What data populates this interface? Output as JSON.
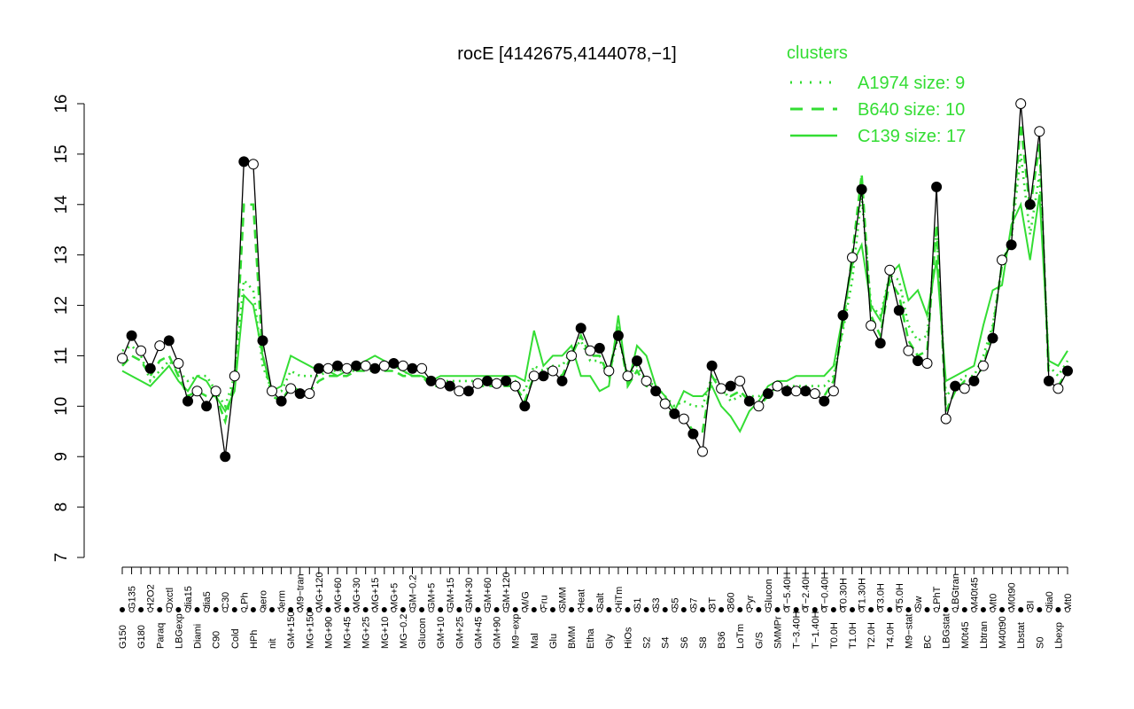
{
  "chart_data": {
    "type": "line",
    "title": "rocE [4142675,4144078,−1]",
    "xlabel": "",
    "ylabel": "",
    "ylim": [
      7,
      16
    ],
    "y_ticks": [
      7,
      8,
      9,
      10,
      11,
      12,
      13,
      14,
      15,
      16
    ],
    "grid": false,
    "legend": {
      "title": "clusters",
      "position": "top-right",
      "entries": [
        {
          "label": "A1974 size: 9",
          "style": "dotted"
        },
        {
          "label": "B640 size: 10",
          "style": "dashed"
        },
        {
          "label": "C139 size: 17",
          "style": "solid"
        }
      ]
    },
    "colors": {
      "cluster_lines": "#33dd33",
      "profile": "#000000",
      "point_fill": "#ffffff"
    },
    "x_tick_labels": [
      "G150",
      "G135",
      "G180",
      "H2O2",
      "Paraq",
      "Oxctl",
      "LBGexp",
      "dia15",
      "Diami",
      "dia5",
      "C90",
      "C30",
      "Cold",
      "LPh",
      "HPh",
      "aero",
      "nit",
      "ferm",
      "GM+150",
      "M9−tran",
      "MG+150",
      "MG+120",
      "MG+90",
      "MG+60",
      "MG+45",
      "MG+30",
      "MG+25",
      "MG+15",
      "MG+10",
      "MG+5",
      "MG−0.2",
      "GM−0.2",
      "Glucon",
      "GM+5",
      "GM+10",
      "GM+15",
      "GM+25",
      "GM+30",
      "GM+45",
      "GM+60",
      "GM+90",
      "GM+120",
      "M9−exp",
      "M/G",
      "Mal",
      "Fru",
      "Glu",
      "SMM",
      "BMM",
      "Heat",
      "Etha",
      "Salt",
      "Gly",
      "HiTm",
      "HiOs",
      "S1",
      "S2",
      "S3",
      "S4",
      "S5",
      "S6",
      "S7",
      "S8",
      "BT",
      "B36",
      "B60",
      "LoTm",
      "Pyr",
      "G/S",
      "Glucon",
      "SMMPr",
      "T−5.40H",
      "T−3.40H",
      "T−2.40H",
      "T−1.40H",
      "T−0.40H",
      "T0.0H",
      "T0.30H",
      "T1.0H",
      "T1.30H",
      "T2.0H",
      "T3.0H",
      "T4.0H",
      "T5.0H",
      "M9−stat",
      "Sw",
      "BC",
      "LPhT",
      "LBGstat",
      "LBGtran",
      "M0t45",
      "M40t45",
      "Lbtran",
      "Mt0",
      "M40t90",
      "M0t90",
      "Lbstat",
      "BI",
      "S0",
      "dia0",
      "Lbexp",
      "Mt0"
    ],
    "x": [
      1,
      2,
      3,
      4,
      5,
      6,
      7,
      8,
      9,
      10,
      11,
      12,
      13,
      14,
      15,
      16,
      17,
      18,
      19,
      20,
      21,
      22,
      23,
      24,
      25,
      26,
      27,
      28,
      29,
      30,
      31,
      32,
      33,
      34,
      35,
      36,
      37,
      38,
      39,
      40,
      41,
      42,
      43,
      44,
      45,
      46,
      47,
      48,
      49,
      50,
      51,
      52,
      53,
      54,
      55,
      56,
      57,
      58,
      59,
      60,
      61,
      62,
      63,
      64,
      65,
      66,
      67,
      68,
      69,
      70,
      71,
      72,
      73,
      74,
      75,
      76,
      77,
      78,
      79,
      80,
      81,
      82,
      83,
      84,
      85,
      86,
      87,
      88,
      89,
      90,
      91,
      92,
      93,
      94,
      95,
      96,
      97,
      98,
      99,
      100,
      101,
      102
    ],
    "series": [
      {
        "values": [
          10.95,
          11.4,
          11.1,
          10.75,
          11.2,
          11.3,
          10.85,
          10.1,
          10.3,
          10.0,
          10.3,
          9.0,
          10.6,
          14.85,
          14.8,
          11.3,
          10.3,
          10.1,
          10.35,
          10.25,
          10.25,
          10.75,
          10.75,
          10.8,
          10.75,
          10.8,
          10.8,
          10.75,
          10.8,
          10.85,
          10.8,
          10.75,
          10.75,
          10.5,
          10.45,
          10.4,
          10.3,
          10.3,
          10.45,
          10.5,
          10.45,
          10.5,
          10.4,
          10.0,
          10.6,
          10.6,
          10.7,
          10.5,
          11.0,
          11.55,
          11.1,
          11.15,
          10.7,
          11.4,
          10.6,
          10.9,
          10.5,
          10.3,
          10.05,
          9.85,
          9.75,
          9.45,
          9.1,
          10.8,
          10.35,
          10.4,
          10.5,
          10.1,
          10.0,
          10.25,
          10.4,
          10.3,
          10.3,
          10.3,
          10.25,
          10.1,
          10.3,
          11.8,
          12.95,
          14.3,
          11.6,
          11.25,
          12.7,
          11.9,
          11.1,
          10.9,
          10.85,
          14.35,
          9.75,
          10.4,
          10.35,
          10.5,
          10.8,
          11.35,
          12.9,
          13.2,
          16.0,
          14.0,
          15.45,
          10.5,
          10.35,
          10.7
        ]
      },
      {
        "name": "A1974 size: 9",
        "style": "dotted",
        "values": [
          11.1,
          11.2,
          11.0,
          10.5,
          10.7,
          10.9,
          10.7,
          10.5,
          10.6,
          10.6,
          10.3,
          10.0,
          10.6,
          12.5,
          12.3,
          10.8,
          10.3,
          10.3,
          10.7,
          10.6,
          10.6,
          10.6,
          10.7,
          10.7,
          10.7,
          10.7,
          10.8,
          10.8,
          10.8,
          10.8,
          10.7,
          10.6,
          10.6,
          10.5,
          10.5,
          10.5,
          10.5,
          10.5,
          10.5,
          10.5,
          10.5,
          10.5,
          10.5,
          10.3,
          10.8,
          10.7,
          10.8,
          10.8,
          11.1,
          11.3,
          10.9,
          10.9,
          10.6,
          11.4,
          10.6,
          10.8,
          10.5,
          10.4,
          10.2,
          10.0,
          10.1,
          10.0,
          10.0,
          10.6,
          10.4,
          10.1,
          10.2,
          10.2,
          10.2,
          10.3,
          10.4,
          10.4,
          10.4,
          10.4,
          10.4,
          10.4,
          10.6,
          11.5,
          12.5,
          14.2,
          12.0,
          11.8,
          12.6,
          12.5,
          11.6,
          11.3,
          11.4,
          13.5,
          10.2,
          10.4,
          10.6,
          10.6,
          11.0,
          11.6,
          12.8,
          13.3,
          15.0,
          13.4,
          14.6,
          10.8,
          10.6,
          10.9
        ]
      },
      {
        "name": "B640 size: 10",
        "style": "dashed",
        "values": [
          10.8,
          11.0,
          10.9,
          10.6,
          10.9,
          11.0,
          10.6,
          10.2,
          10.3,
          10.2,
          10.2,
          9.7,
          10.5,
          14.0,
          14.0,
          11.0,
          10.2,
          10.1,
          10.4,
          10.3,
          10.3,
          10.5,
          10.6,
          10.6,
          10.6,
          10.7,
          10.7,
          10.7,
          10.7,
          10.7,
          10.6,
          10.6,
          10.6,
          10.4,
          10.4,
          10.4,
          10.3,
          10.3,
          10.4,
          10.4,
          10.4,
          10.4,
          10.4,
          10.1,
          10.6,
          10.6,
          10.7,
          10.6,
          11.0,
          11.4,
          11.0,
          11.0,
          10.6,
          11.6,
          10.4,
          10.7,
          10.4,
          10.3,
          10.0,
          9.8,
          9.8,
          9.5,
          9.5,
          10.6,
          10.3,
          10.2,
          10.3,
          10.1,
          10.0,
          10.2,
          10.4,
          10.3,
          10.3,
          10.3,
          10.3,
          10.2,
          10.5,
          11.6,
          13.0,
          14.6,
          11.8,
          11.4,
          12.5,
          12.2,
          11.3,
          11.0,
          11.1,
          13.6,
          9.9,
          10.3,
          10.5,
          10.5,
          10.8,
          11.5,
          12.8,
          13.4,
          15.6,
          13.9,
          15.2,
          10.5,
          10.4,
          10.7
        ]
      },
      {
        "name": "C139 size: 17",
        "style": "solid",
        "values": [
          10.7,
          10.6,
          10.5,
          10.4,
          10.6,
          10.8,
          10.5,
          10.3,
          10.6,
          10.5,
          10.2,
          9.9,
          10.3,
          12.2,
          12.0,
          11.0,
          10.3,
          10.4,
          11.0,
          10.9,
          10.8,
          10.7,
          10.7,
          10.6,
          10.7,
          10.8,
          10.9,
          11.0,
          10.9,
          10.8,
          10.7,
          10.6,
          10.6,
          10.5,
          10.6,
          10.6,
          10.6,
          10.6,
          10.6,
          10.6,
          10.6,
          10.6,
          10.6,
          10.5,
          11.5,
          10.8,
          11.0,
          11.0,
          11.2,
          10.6,
          10.6,
          10.3,
          10.4,
          11.8,
          10.4,
          11.2,
          11.0,
          10.4,
          10.2,
          9.9,
          10.3,
          10.2,
          10.2,
          10.4,
          10.0,
          9.8,
          9.5,
          9.9,
          10.1,
          10.4,
          10.5,
          10.5,
          10.6,
          10.6,
          10.6,
          10.6,
          10.8,
          11.8,
          12.8,
          13.2,
          12.0,
          11.7,
          12.6,
          12.8,
          12.1,
          12.3,
          11.8,
          12.9,
          10.5,
          10.6,
          10.7,
          10.8,
          11.6,
          12.3,
          12.4,
          13.6,
          14.0,
          12.9,
          14.2,
          10.9,
          10.8,
          11.1
        ]
      }
    ]
  }
}
